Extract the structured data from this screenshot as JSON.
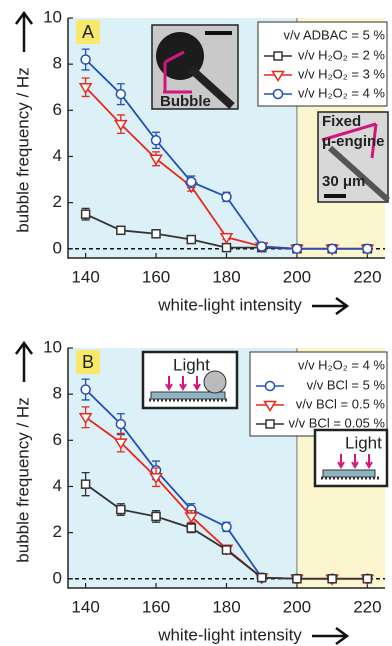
{
  "chart_data": [
    {
      "type": "line",
      "panel_label": "A",
      "xlabel": "white-light intensity",
      "ylabel": "bubble frequency / Hz",
      "legend_title": "v/v ADBAC = 5 %",
      "x": [
        140,
        150,
        160,
        170,
        180,
        190,
        200,
        210,
        220
      ],
      "xlim": [
        135,
        225
      ],
      "ylim": [
        -0.4,
        10
      ],
      "xticks": [
        140,
        160,
        180,
        200,
        220
      ],
      "yticks": [
        0,
        2,
        4,
        6,
        8,
        10
      ],
      "background_split_x": 200,
      "background_colors": [
        "#dcf0f8",
        "#fbf6cd"
      ],
      "reference_line_y": 0,
      "inset_labels": [
        "Bubble",
        "Fixed",
        "μ-engine",
        "30 μm"
      ],
      "series": [
        {
          "name": "v/v H₂O₂ = 2 %",
          "color": "#333333",
          "marker": "square",
          "values": [
            1.5,
            0.8,
            0.65,
            0.4,
            0.05,
            0.05,
            0,
            0,
            0
          ],
          "errors": [
            0.25,
            0.1,
            0.1,
            0.1,
            0.05,
            0.05,
            0.05,
            0.05,
            0.05
          ]
        },
        {
          "name": "v/v H₂O₂ = 3 %",
          "color": "#e8291c",
          "marker": "triangle",
          "values": [
            7.0,
            5.4,
            3.9,
            2.7,
            0.5,
            0.1,
            0,
            0,
            0
          ],
          "errors": [
            0.4,
            0.4,
            0.3,
            0.2,
            0.1,
            0.05,
            0.05,
            0.05,
            0.05
          ]
        },
        {
          "name": "v/v H₂O₂ = 4 %",
          "color": "#2150b8",
          "marker": "circle",
          "values": [
            8.2,
            6.7,
            4.7,
            2.9,
            2.25,
            0.1,
            0,
            0,
            0
          ],
          "errors": [
            0.45,
            0.45,
            0.35,
            0.25,
            0.2,
            0.05,
            0.05,
            0.05,
            0.05
          ]
        }
      ]
    },
    {
      "type": "line",
      "panel_label": "B",
      "xlabel": "white-light intensity",
      "ylabel": "bubble frequency / Hz",
      "legend_title": "v/v H₂O₂ = 4 %",
      "x": [
        140,
        150,
        160,
        170,
        180,
        190,
        200,
        210,
        220
      ],
      "xlim": [
        135,
        225
      ],
      "ylim": [
        -0.4,
        10
      ],
      "xticks": [
        140,
        160,
        180,
        200,
        220
      ],
      "yticks": [
        0,
        2,
        4,
        6,
        8,
        10
      ],
      "background_split_x": 200,
      "background_colors": [
        "#dcf0f8",
        "#fbf6cd"
      ],
      "reference_line_y": 0,
      "inset_labels": [
        "Light",
        "Light"
      ],
      "series": [
        {
          "name": "v/v BCl = 5 %",
          "color": "#2150b8",
          "marker": "circle",
          "values": [
            8.2,
            6.7,
            4.7,
            3.0,
            2.25,
            0.05,
            0,
            0,
            0
          ],
          "errors": [
            0.45,
            0.45,
            0.4,
            0.25,
            0.2,
            0.05,
            0.05,
            0.05,
            0.05
          ]
        },
        {
          "name": "v/v BCl = 0.5 %",
          "color": "#e8291c",
          "marker": "triangle",
          "values": [
            7.0,
            5.9,
            4.4,
            2.7,
            1.3,
            0.05,
            0,
            0,
            0
          ],
          "errors": [
            0.45,
            0.4,
            0.4,
            0.25,
            0.1,
            0.05,
            0.05,
            0.05,
            0.05
          ]
        },
        {
          "name": "v/v BCl = 0.05 %",
          "color": "#333333",
          "marker": "square",
          "values": [
            4.1,
            3.0,
            2.7,
            2.2,
            1.25,
            0.05,
            0,
            0,
            0
          ],
          "errors": [
            0.5,
            0.25,
            0.25,
            0.2,
            0.1,
            0.05,
            0.05,
            0.05,
            0.05
          ]
        }
      ]
    }
  ]
}
